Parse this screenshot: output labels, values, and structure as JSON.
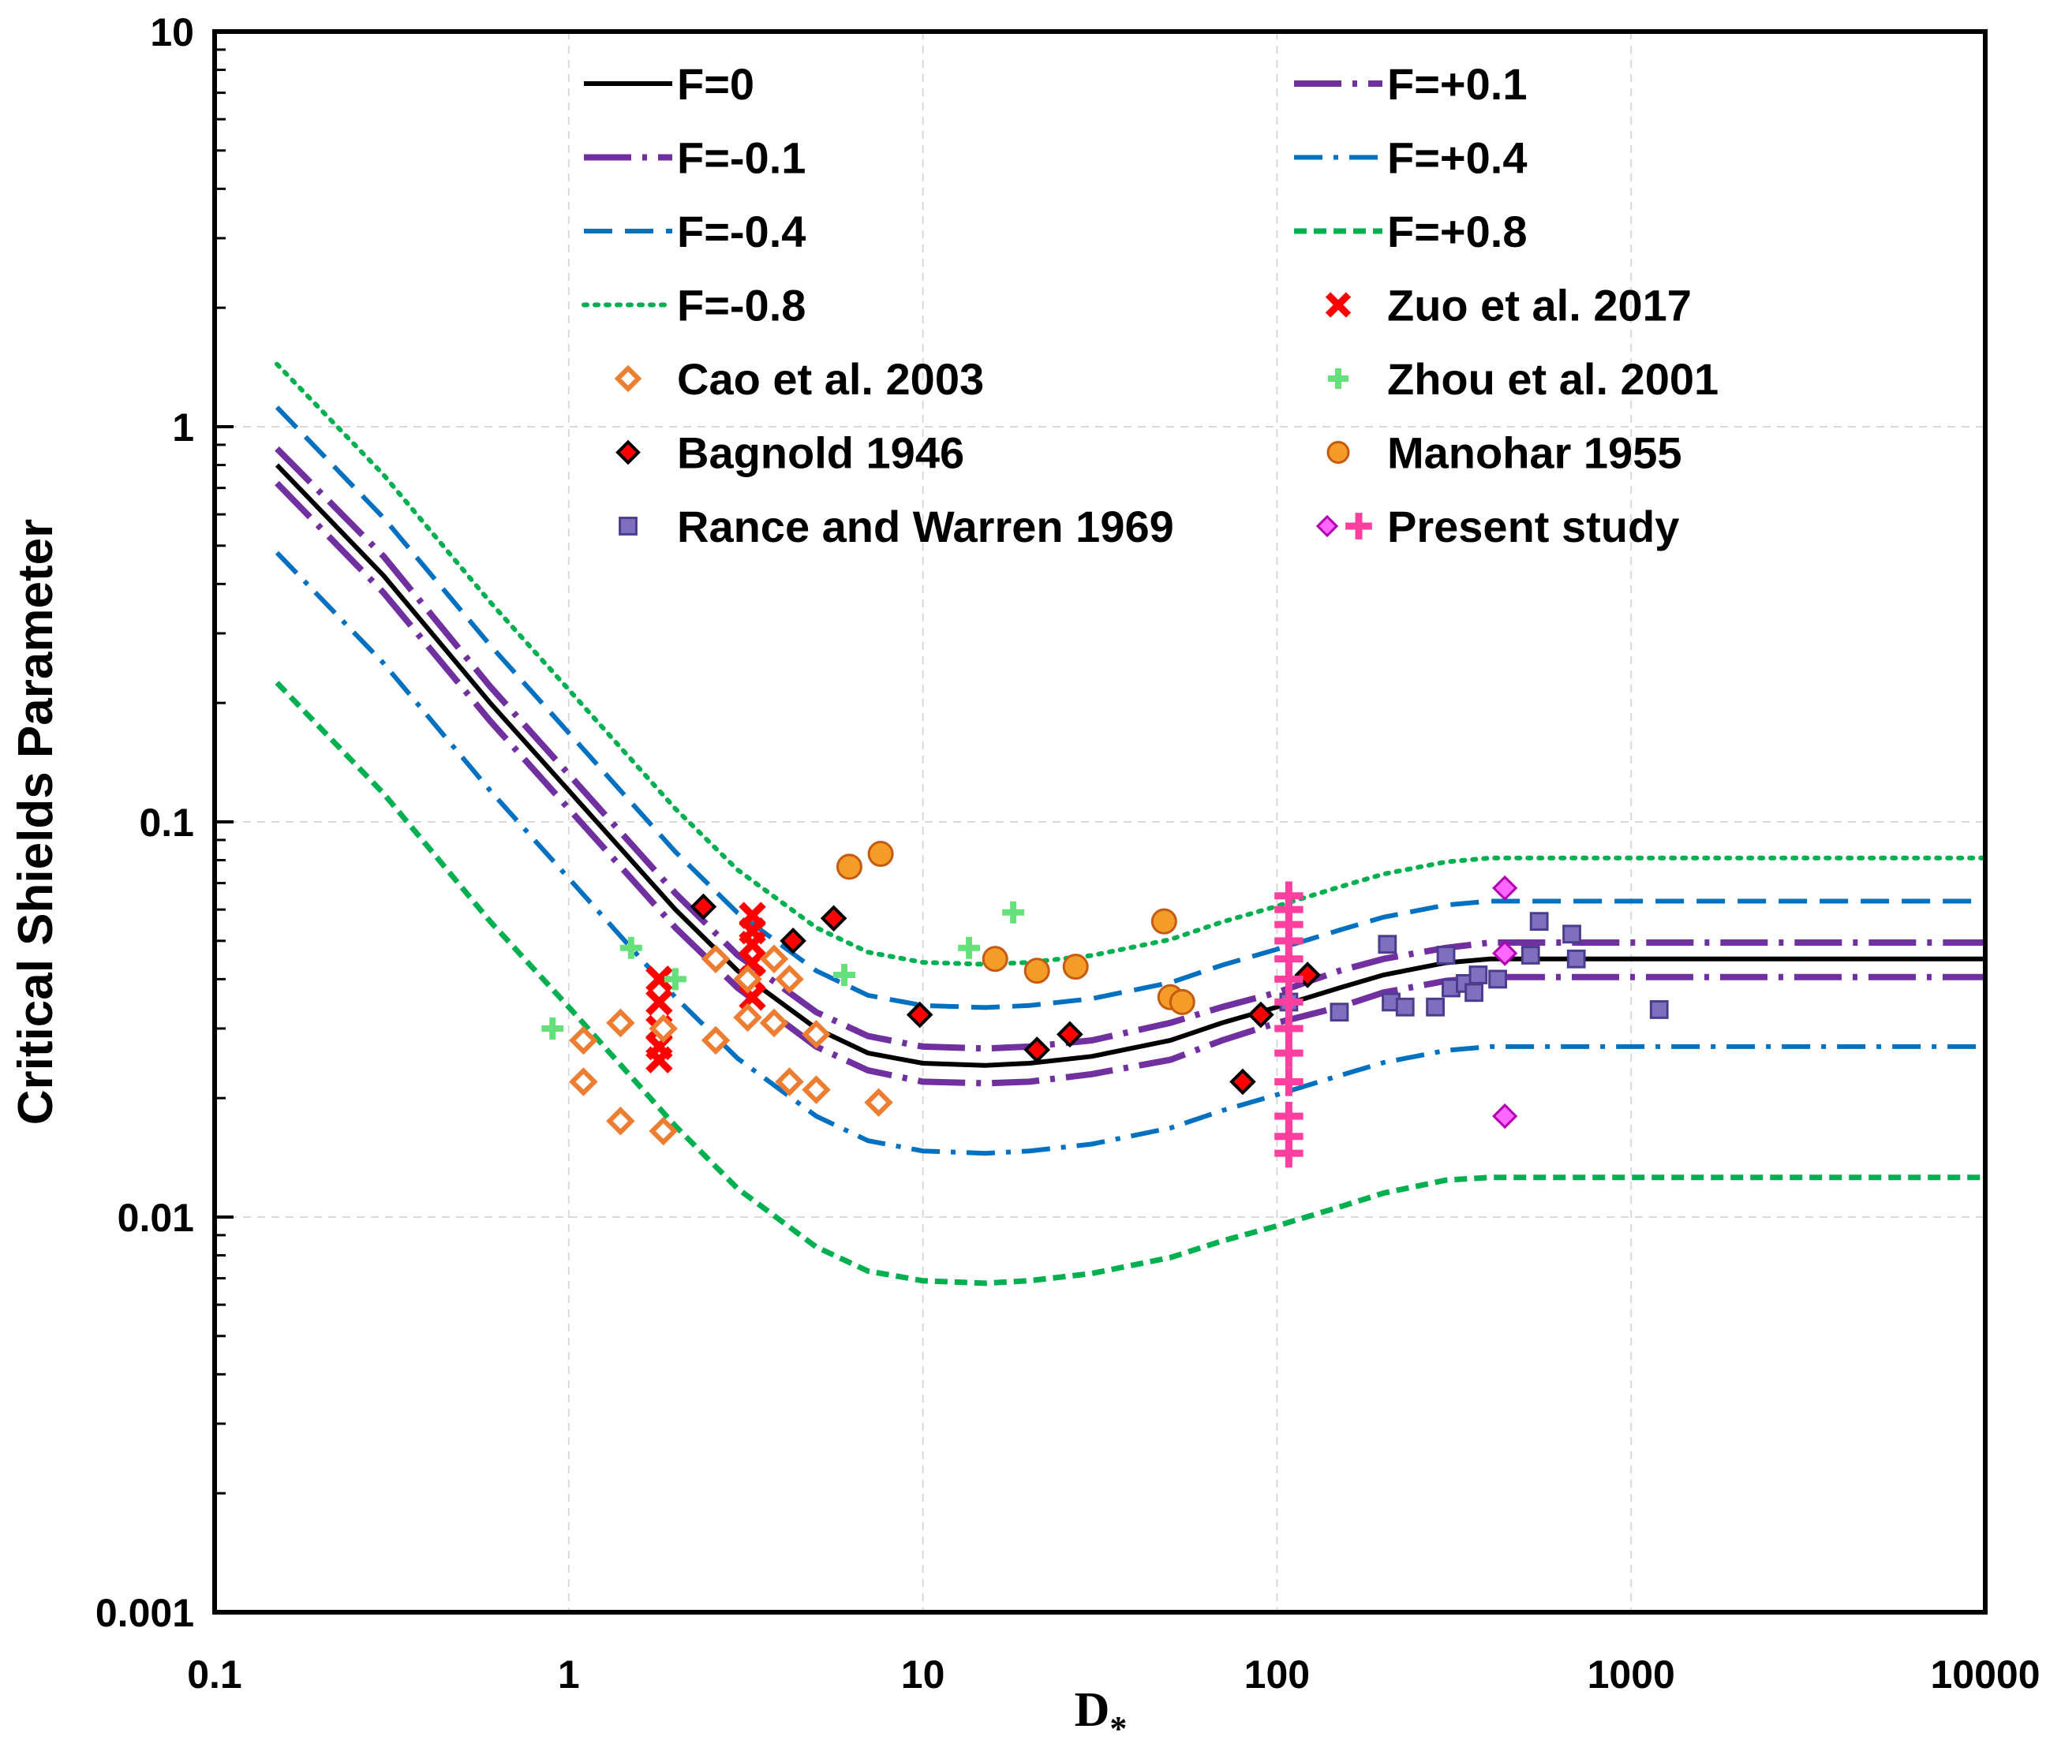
{
  "chart_data": {
    "type": "scatter",
    "xlabel": "D",
    "xlabel_subscript": "*",
    "ylabel": "Critical Shields Parameter",
    "x_scale": "log",
    "y_scale": "log",
    "xlim": [
      0.1,
      10000
    ],
    "ylim": [
      0.001,
      10
    ],
    "x_ticks": [
      "0.1",
      "1",
      "10",
      "100",
      "1000",
      "10000"
    ],
    "y_ticks": [
      "10",
      "1",
      "0.1",
      "0.01",
      "0.001"
    ],
    "grid": true,
    "legend_position": "top",
    "series": [
      {
        "name": "F=0",
        "kind": "line",
        "style": "solid",
        "color": "#000000",
        "x": [
          0.15,
          0.3,
          0.6,
          1,
          2,
          3,
          5,
          7,
          10,
          15,
          20,
          30,
          50,
          70,
          100,
          150,
          200,
          300,
          400,
          10000
        ],
        "y": [
          0.8,
          0.42,
          0.2,
          0.12,
          0.06,
          0.042,
          0.03,
          0.026,
          0.0245,
          0.0242,
          0.0245,
          0.0255,
          0.028,
          0.031,
          0.034,
          0.038,
          0.041,
          0.044,
          0.045,
          0.045
        ]
      },
      {
        "name": "F=+0.1",
        "kind": "line",
        "style": "longdash-dot",
        "color": "#7030a0",
        "x": [
          0.15,
          0.3,
          0.6,
          1,
          2,
          3,
          5,
          7,
          10,
          15,
          20,
          30,
          50,
          70,
          100,
          150,
          200,
          300,
          400,
          10000
        ],
        "y": [
          0.88,
          0.47,
          0.22,
          0.132,
          0.066,
          0.046,
          0.033,
          0.0287,
          0.027,
          0.0267,
          0.027,
          0.028,
          0.031,
          0.034,
          0.037,
          0.042,
          0.045,
          0.048,
          0.0495,
          0.0495
        ]
      },
      {
        "name": "F=-0.1",
        "kind": "line",
        "style": "longdash-dot",
        "color": "#7030a0",
        "x": [
          0.15,
          0.3,
          0.6,
          1,
          2,
          3,
          5,
          7,
          10,
          15,
          20,
          30,
          50,
          70,
          100,
          150,
          200,
          300,
          400,
          10000
        ],
        "y": [
          0.72,
          0.38,
          0.18,
          0.108,
          0.054,
          0.038,
          0.027,
          0.0235,
          0.022,
          0.0218,
          0.022,
          0.023,
          0.025,
          0.028,
          0.031,
          0.034,
          0.037,
          0.0396,
          0.0405,
          0.0405
        ]
      },
      {
        "name": "F=+0.4",
        "kind": "line",
        "style": "dash-dot",
        "color": "#0070c0",
        "x": [
          0.15,
          0.3,
          0.6,
          1,
          2,
          3,
          5,
          7,
          10,
          15,
          20,
          30,
          50,
          70,
          100,
          150,
          200,
          300,
          400,
          10000
        ],
        "y": [
          0.48,
          0.252,
          0.12,
          0.072,
          0.036,
          0.0252,
          0.018,
          0.0156,
          0.0147,
          0.0145,
          0.0147,
          0.0153,
          0.0168,
          0.0186,
          0.0204,
          0.0228,
          0.0246,
          0.0264,
          0.027,
          0.027
        ]
      },
      {
        "name": "F=-0.4",
        "kind": "line",
        "style": "dash",
        "color": "#0070c0",
        "x": [
          0.15,
          0.3,
          0.6,
          1,
          2,
          3,
          5,
          7,
          10,
          15,
          20,
          30,
          50,
          70,
          100,
          150,
          200,
          300,
          400,
          10000
        ],
        "y": [
          1.12,
          0.588,
          0.28,
          0.168,
          0.084,
          0.0588,
          0.042,
          0.0364,
          0.0343,
          0.0339,
          0.0343,
          0.0357,
          0.0392,
          0.0434,
          0.0476,
          0.0532,
          0.0574,
          0.0616,
          0.063,
          0.063
        ]
      },
      {
        "name": "F=+0.8",
        "kind": "line",
        "style": "short-dash",
        "color": "#00b050",
        "x": [
          0.15,
          0.3,
          0.6,
          1,
          2,
          3,
          5,
          7,
          10,
          15,
          20,
          30,
          50,
          70,
          100,
          150,
          200,
          300,
          400,
          10000
        ],
        "y": [
          0.225,
          0.118,
          0.056,
          0.034,
          0.017,
          0.0118,
          0.0084,
          0.0073,
          0.0069,
          0.0068,
          0.0069,
          0.0072,
          0.0079,
          0.0087,
          0.0095,
          0.0106,
          0.0115,
          0.0124,
          0.0126,
          0.0126
        ]
      },
      {
        "name": "F=-0.8",
        "kind": "line",
        "style": "dot",
        "color": "#00b050",
        "x": [
          0.15,
          0.3,
          0.6,
          1,
          2,
          3,
          5,
          7,
          10,
          15,
          20,
          30,
          50,
          70,
          100,
          150,
          200,
          300,
          400,
          10000
        ],
        "y": [
          1.44,
          0.756,
          0.36,
          0.216,
          0.108,
          0.0756,
          0.054,
          0.0468,
          0.0441,
          0.0436,
          0.0441,
          0.0459,
          0.0504,
          0.0558,
          0.0612,
          0.0684,
          0.0738,
          0.0792,
          0.081,
          0.081
        ]
      },
      {
        "name": "Zuo et al. 2017",
        "kind": "points",
        "marker": "x",
        "color": "#ff0000",
        "x": [
          1.8,
          1.8,
          1.8,
          1.8,
          1.8,
          3.3,
          3.3,
          3.3,
          3.3,
          3.3,
          3.3
        ],
        "y": [
          0.04,
          0.035,
          0.03,
          0.027,
          0.025,
          0.058,
          0.053,
          0.049,
          0.044,
          0.04,
          0.036
        ]
      },
      {
        "name": "Cao et al. 2003",
        "kind": "points",
        "marker": "diamond-open",
        "color": "#ed7d31",
        "x": [
          1.1,
          1.1,
          1.4,
          1.4,
          1.85,
          1.85,
          2.6,
          2.6,
          3.2,
          3.2,
          3.8,
          3.8,
          4.2,
          4.2,
          5.0,
          5.0,
          7.5
        ],
        "y": [
          0.028,
          0.022,
          0.031,
          0.0175,
          0.03,
          0.0165,
          0.045,
          0.028,
          0.04,
          0.032,
          0.045,
          0.031,
          0.04,
          0.022,
          0.029,
          0.021,
          0.0195
        ]
      },
      {
        "name": "Zhou et al. 2001",
        "kind": "points",
        "marker": "plus",
        "color": "#66e07a",
        "x": [
          0.9,
          1.5,
          2.0,
          6.0,
          13.5,
          18.0
        ],
        "y": [
          0.03,
          0.048,
          0.04,
          0.041,
          0.048,
          0.059
        ]
      },
      {
        "name": "Bagnold 1946",
        "kind": "points",
        "marker": "diamond-filled",
        "color": "#ff0000",
        "x": [
          2.4,
          4.3,
          5.6,
          9.8,
          21,
          26,
          80,
          90,
          122
        ],
        "y": [
          0.061,
          0.05,
          0.057,
          0.0325,
          0.0265,
          0.029,
          0.022,
          0.0325,
          0.041
        ]
      },
      {
        "name": "Manohar 1955",
        "kind": "points",
        "marker": "circle",
        "color": "#f39c27",
        "x": [
          6.2,
          7.6,
          16,
          21,
          27,
          48,
          50,
          54
        ],
        "y": [
          0.077,
          0.083,
          0.045,
          0.042,
          0.043,
          0.056,
          0.036,
          0.035
        ]
      },
      {
        "name": "Rance and Warren 1969",
        "kind": "points",
        "marker": "square",
        "color": "#7f6fbf",
        "x": [
          108,
          150,
          205,
          210,
          230,
          280,
          300,
          310,
          340,
          360,
          370,
          420,
          550,
          520,
          680,
          700,
          1200
        ],
        "y": [
          0.035,
          0.033,
          0.049,
          0.035,
          0.034,
          0.034,
          0.046,
          0.038,
          0.039,
          0.037,
          0.041,
          0.04,
          0.056,
          0.046,
          0.052,
          0.045,
          0.0335
        ]
      },
      {
        "name": "Present study",
        "kind": "points",
        "marker": "present-study",
        "color": "#ff3fa0",
        "x": [
          108,
          108,
          108,
          108,
          108,
          108,
          108,
          108,
          108,
          108,
          108,
          108,
          108,
          440,
          440,
          440
        ],
        "y": [
          0.065,
          0.06,
          0.055,
          0.05,
          0.045,
          0.04,
          0.035,
          0.03,
          0.026,
          0.022,
          0.018,
          0.016,
          0.0145,
          0.068,
          0.0465,
          0.018
        ]
      }
    ]
  }
}
